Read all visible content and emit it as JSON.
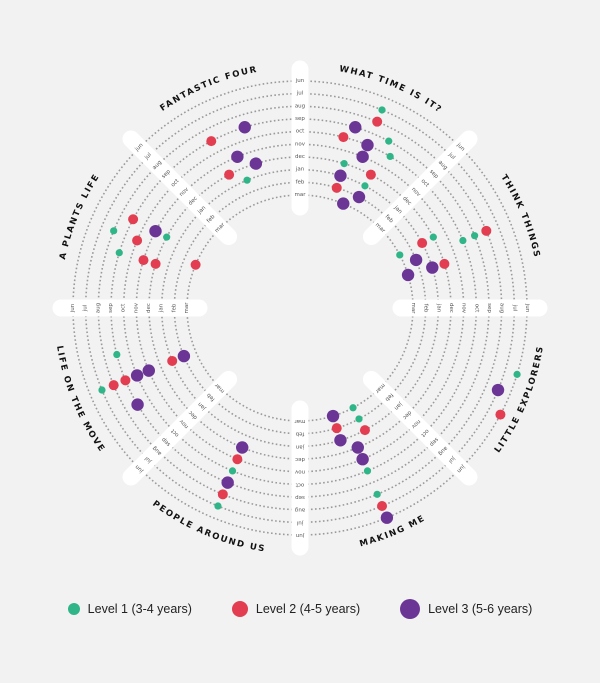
{
  "chart_data": {
    "type": "scatter",
    "title": "",
    "months": [
      "jun",
      "jul",
      "aug",
      "sep",
      "oct",
      "nov",
      "dec",
      "jan",
      "feb",
      "mar"
    ],
    "themes": [
      "WHAT TIME IS IT?",
      "THINK THINGS",
      "LITTLE EXPLORERS",
      "MAKING ME",
      "PEOPLE AROUND US",
      "LIFE ON THE MOVE",
      "A PLANTS LIFE",
      "FANTASTIC FOUR"
    ],
    "levels": [
      {
        "name": "Level 1 (3-4 years)",
        "color": "#2fb588"
      },
      {
        "name": "Level 2 (4-5 years)",
        "color": "#e23d50"
      },
      {
        "name": "Level 3 (5-6 years)",
        "color": "#6b3596"
      }
    ],
    "points": [
      {
        "theme": "WHAT TIME IS IT?",
        "month": "jul",
        "level": 1
      },
      {
        "theme": "WHAT TIME IS IT?",
        "month": "aug",
        "level": 2
      },
      {
        "theme": "WHAT TIME IS IT?",
        "month": "sep",
        "level": 3
      },
      {
        "theme": "WHAT TIME IS IT?",
        "month": "sep",
        "level": 1
      },
      {
        "theme": "WHAT TIME IS IT?",
        "month": "oct",
        "level": 2
      },
      {
        "theme": "WHAT TIME IS IT?",
        "month": "oct",
        "level": 3
      },
      {
        "theme": "WHAT TIME IS IT?",
        "month": "oct",
        "level": 1
      },
      {
        "theme": "WHAT TIME IS IT?",
        "month": "nov",
        "level": 3
      },
      {
        "theme": "WHAT TIME IS IT?",
        "month": "dec",
        "level": 1
      },
      {
        "theme": "WHAT TIME IS IT?",
        "month": "dec",
        "level": 2
      },
      {
        "theme": "WHAT TIME IS IT?",
        "month": "jan",
        "level": 3
      },
      {
        "theme": "WHAT TIME IS IT?",
        "month": "jan",
        "level": 1
      },
      {
        "theme": "WHAT TIME IS IT?",
        "month": "feb",
        "level": 2
      },
      {
        "theme": "WHAT TIME IS IT?",
        "month": "feb",
        "level": 3
      },
      {
        "theme": "WHAT TIME IS IT?",
        "month": "mar",
        "level": 3
      },
      {
        "theme": "THINK THINGS",
        "month": "aug",
        "level": 2
      },
      {
        "theme": "THINK THINGS",
        "month": "sep",
        "level": 1
      },
      {
        "theme": "THINK THINGS",
        "month": "oct",
        "level": 1
      },
      {
        "theme": "THINK THINGS",
        "month": "dec",
        "level": 1
      },
      {
        "theme": "THINK THINGS",
        "month": "dec",
        "level": 2
      },
      {
        "theme": "THINK THINGS",
        "month": "jan",
        "level": 2
      },
      {
        "theme": "THINK THINGS",
        "month": "jan",
        "level": 3
      },
      {
        "theme": "THINK THINGS",
        "month": "feb",
        "level": 3
      },
      {
        "theme": "THINK THINGS",
        "month": "mar",
        "level": 1
      },
      {
        "theme": "THINK THINGS",
        "month": "mar",
        "level": 3
      },
      {
        "theme": "LITTLE EXPLORERS",
        "month": "jun",
        "level": 1
      },
      {
        "theme": "LITTLE EXPLORERS",
        "month": "jun",
        "level": 2
      },
      {
        "theme": "LITTLE EXPLORERS",
        "month": "jul",
        "level": 3
      },
      {
        "theme": "MAKING ME",
        "month": "jul",
        "level": 2
      },
      {
        "theme": "MAKING ME",
        "month": "aug",
        "level": 1
      },
      {
        "theme": "MAKING ME",
        "month": "oct",
        "level": 1
      },
      {
        "theme": "MAKING ME",
        "month": "nov",
        "level": 3
      },
      {
        "theme": "MAKING ME",
        "month": "dec",
        "level": 3
      },
      {
        "theme": "MAKING ME",
        "month": "jan",
        "level": 2
      },
      {
        "theme": "MAKING ME",
        "month": "jan",
        "level": 3
      },
      {
        "theme": "MAKING ME",
        "month": "feb",
        "level": 1
      },
      {
        "theme": "MAKING ME",
        "month": "feb",
        "level": 2
      },
      {
        "theme": "MAKING ME",
        "month": "mar",
        "level": 1
      },
      {
        "theme": "MAKING ME",
        "month": "mar",
        "level": 3
      },
      {
        "theme": "MAKING ME",
        "month": "jun",
        "level": 3
      },
      {
        "theme": "PEOPLE AROUND US",
        "month": "jul",
        "level": 1
      },
      {
        "theme": "PEOPLE AROUND US",
        "month": "aug",
        "level": 2
      },
      {
        "theme": "PEOPLE AROUND US",
        "month": "sep",
        "level": 3
      },
      {
        "theme": "PEOPLE AROUND US",
        "month": "oct",
        "level": 1
      },
      {
        "theme": "PEOPLE AROUND US",
        "month": "nov",
        "level": 2
      },
      {
        "theme": "PEOPLE AROUND US",
        "month": "dec",
        "level": 3
      },
      {
        "theme": "LIFE ON THE MOVE",
        "month": "jul",
        "level": 1
      },
      {
        "theme": "LIFE ON THE MOVE",
        "month": "aug",
        "level": 2
      },
      {
        "theme": "LIFE ON THE MOVE",
        "month": "sep",
        "level": 3
      },
      {
        "theme": "LIFE ON THE MOVE",
        "month": "sep",
        "level": 2
      },
      {
        "theme": "LIFE ON THE MOVE",
        "month": "sep",
        "level": 1
      },
      {
        "theme": "LIFE ON THE MOVE",
        "month": "oct",
        "level": 3
      },
      {
        "theme": "LIFE ON THE MOVE",
        "month": "nov",
        "level": 3
      },
      {
        "theme": "LIFE ON THE MOVE",
        "month": "jan",
        "level": 2
      },
      {
        "theme": "LIFE ON THE MOVE",
        "month": "feb",
        "level": 3
      },
      {
        "theme": "A PLANTS LIFE",
        "month": "aug",
        "level": 1
      },
      {
        "theme": "A PLANTS LIFE",
        "month": "sep",
        "level": 1
      },
      {
        "theme": "A PLANTS LIFE",
        "month": "sep",
        "level": 2
      },
      {
        "theme": "A PLANTS LIFE",
        "month": "oct",
        "level": 2
      },
      {
        "theme": "A PLANTS LIFE",
        "month": "nov",
        "level": 2
      },
      {
        "theme": "A PLANTS LIFE",
        "month": "nov",
        "level": 3
      },
      {
        "theme": "A PLANTS LIFE",
        "month": "dec",
        "level": 2
      },
      {
        "theme": "A PLANTS LIFE",
        "month": "dec",
        "level": 1
      },
      {
        "theme": "A PLANTS LIFE",
        "month": "mar",
        "level": 2
      },
      {
        "theme": "FANTASTIC FOUR",
        "month": "sep",
        "level": 2
      },
      {
        "theme": "FANTASTIC FOUR",
        "month": "sep",
        "level": 3
      },
      {
        "theme": "FANTASTIC FOUR",
        "month": "nov",
        "level": 3
      },
      {
        "theme": "FANTASTIC FOUR",
        "month": "dec",
        "level": 2
      },
      {
        "theme": "FANTASTIC FOUR",
        "month": "dec",
        "level": 3
      },
      {
        "theme": "FANTASTIC FOUR",
        "month": "jan",
        "level": 1
      }
    ]
  }
}
